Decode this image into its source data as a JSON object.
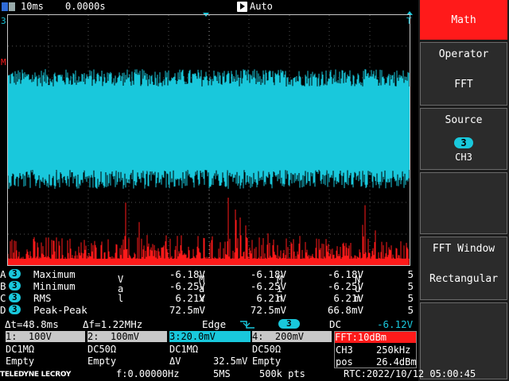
{
  "header": {
    "timebase": "10ms",
    "delay": "0.0000s",
    "trigger_mode": "Auto",
    "left_channel_marker": "3",
    "math_marker": "M",
    "trigger_marker": "T"
  },
  "menu": {
    "math_label": "Math",
    "operator_label": "Operator",
    "operator_value": "FFT",
    "source_label": "Source",
    "source_channel": "3",
    "source_value": "CH3",
    "fft_window_label": "FFT Window",
    "fft_window_value": "Rectangular"
  },
  "measurements": {
    "header_val": "Val",
    "header_max": "Max",
    "header_min": "Min",
    "header_num": "Num",
    "rows": [
      {
        "letter": "A",
        "ch": "3",
        "name": "Maximum",
        "val": "-6.18V",
        "max": "-6.18V",
        "min": "-6.18V",
        "num": "5"
      },
      {
        "letter": "B",
        "ch": "3",
        "name": "Minimum",
        "val": "-6.25V",
        "max": "-6.25V",
        "min": "-6.25V",
        "num": "5"
      },
      {
        "letter": "C",
        "ch": "3",
        "name": "RMS",
        "val": "6.21V",
        "max": "6.21V",
        "min": "6.21V",
        "num": "5"
      },
      {
        "letter": "D",
        "ch": "3",
        "name": "Peak-Peak",
        "val": "72.5mV",
        "max": "72.5mV",
        "min": "66.8mV",
        "num": "5"
      }
    ]
  },
  "cursor_line": {
    "dt": "Δt=48.8ms",
    "df": "Δf=1.22MHz",
    "trigger_type": "Edge",
    "trigger_ch": "3",
    "coupling": "DC",
    "trigger_level": "-6.12V"
  },
  "channels": [
    {
      "label": "1:  100V",
      "coupling": "DC1MΩ",
      "status": "Empty"
    },
    {
      "label": "2:  100mV",
      "coupling": "DC50Ω",
      "status": "Empty"
    },
    {
      "label": "3:20.0mV",
      "coupling": "DC1MΩ",
      "status": "ΔV",
      "value": "32.5mV"
    },
    {
      "label": "4:  200mV",
      "coupling": "DC50Ω",
      "status": "Empty"
    }
  ],
  "fft_box": {
    "label": "FFT:10dBm",
    "ch": "CH3",
    "freq": "250kHz",
    "pos_label": "pos",
    "pos_value": "26.4dBm"
  },
  "footer": {
    "brand": "TELEDYNE LECROY",
    "freq": "f:0.00000Hz",
    "rate": "5MS",
    "points": "500k pts",
    "rtc": "RTC:2022/10/12 05:00:45"
  },
  "colors": {
    "ch3": "#19c8dc",
    "math": "#ff1a1a",
    "ch1": "#ffff00",
    "ch2": "#ff66cc",
    "ch4": "#66ff66"
  }
}
